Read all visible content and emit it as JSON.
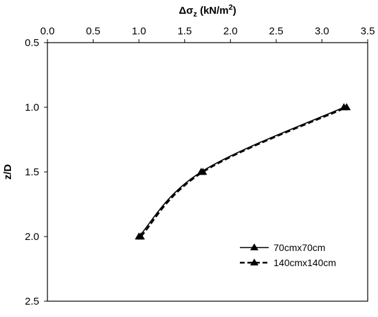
{
  "chart_data": {
    "type": "line",
    "xlabel": {
      "main": "Δσ",
      "sub": "z",
      "units_prefix": " (kN/m",
      "units_sup": "2",
      "units_suffix": ")"
    },
    "ylabel": "z/D",
    "x_axis_position": "top",
    "y_axis_inverted": true,
    "xlim": [
      0,
      3.5
    ],
    "ylim": [
      0.5,
      2.5
    ],
    "x_ticks": [
      "0.0",
      "0.5",
      "1.0",
      "1.5",
      "2.0",
      "2.5",
      "3.0",
      "3.5"
    ],
    "y_ticks": [
      "0.5",
      "1.0",
      "1.5",
      "2.0",
      "2.5"
    ],
    "grid": false,
    "legend_position": "bottom-right",
    "series": [
      {
        "name": "70cmx70cm",
        "line_style": "solid",
        "marker": "triangle",
        "color": "#000000",
        "points": [
          {
            "x": 1.0,
            "y": 2.0
          },
          {
            "x": 1.68,
            "y": 1.5
          },
          {
            "x": 3.24,
            "y": 1.0
          }
        ]
      },
      {
        "name": "140cmx140cm",
        "line_style": "dashed",
        "marker": "triangle",
        "color": "#000000",
        "points": [
          {
            "x": 1.02,
            "y": 2.0
          },
          {
            "x": 1.7,
            "y": 1.5
          },
          {
            "x": 3.27,
            "y": 1.0
          }
        ]
      }
    ]
  }
}
